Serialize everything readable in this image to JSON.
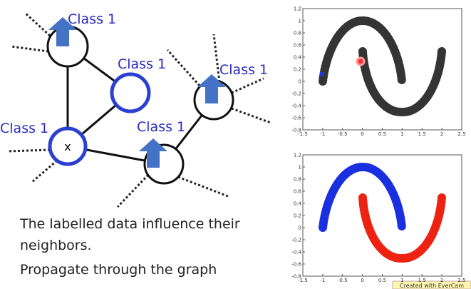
{
  "diagram": {
    "nodes": [
      {
        "label": "Class 1"
      },
      {
        "label": "Class 1"
      },
      {
        "label": "x"
      },
      {
        "label": "Class 1"
      },
      {
        "label": "Class 1"
      }
    ]
  },
  "caption": [
    "The labelled data influence their",
    "neighbors.",
    "Propagate through the graph"
  ],
  "plots": [
    {
      "xticks": [
        -1.5,
        -1,
        -0.5,
        0,
        0.5,
        1,
        1.5,
        2,
        2.5
      ],
      "yticks": [
        1.2,
        1,
        0.8,
        0.6,
        0.4,
        0.2,
        0,
        -0.2,
        -0.4,
        -0.6,
        -0.8
      ]
    },
    {
      "xticks": [
        -1.5,
        -1,
        -0.5,
        0,
        0.5,
        1,
        1.5,
        2,
        2.5
      ],
      "yticks": [
        1.2,
        1,
        0.8,
        0.6,
        0.4,
        0.2,
        0,
        -0.2,
        -0.4,
        -0.6,
        -0.8
      ]
    }
  ],
  "badge": "Created with EverCam"
}
